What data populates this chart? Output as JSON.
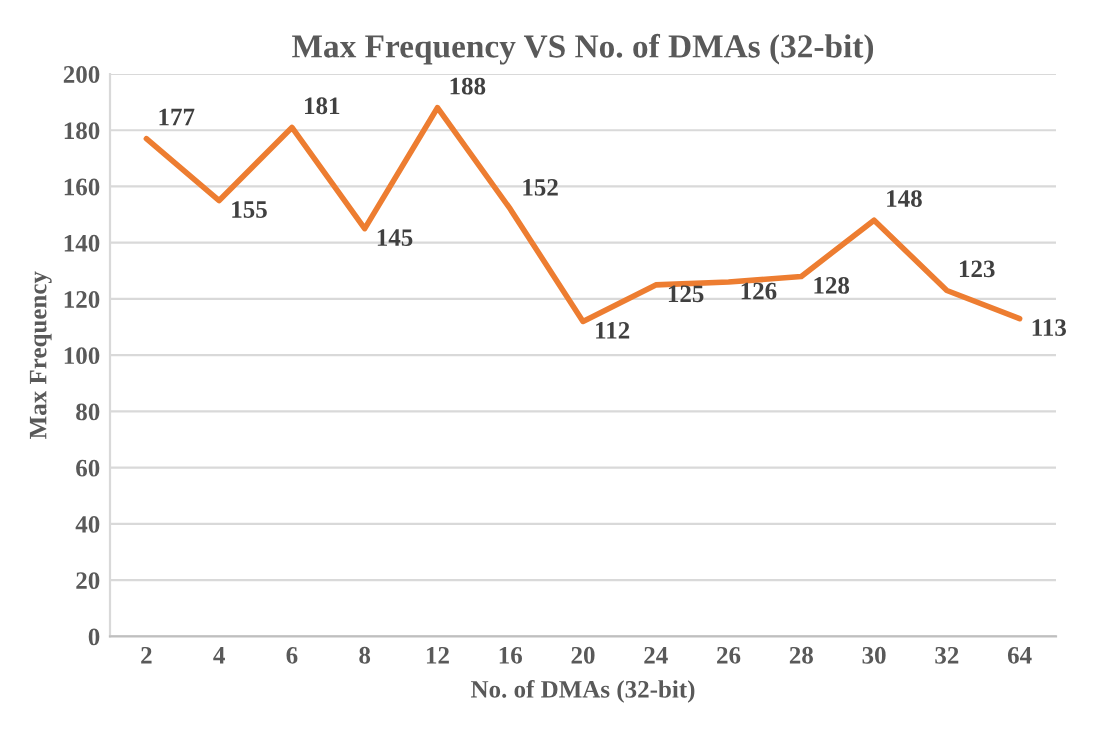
{
  "chart_data": {
    "type": "line",
    "title": "Max Frequency VS No. of DMAs (32-bit)",
    "xlabel": "No. of DMAs (32-bit)",
    "ylabel": "Max Frequency",
    "categories": [
      "2",
      "4",
      "6",
      "8",
      "12",
      "16",
      "20",
      "24",
      "26",
      "28",
      "30",
      "32",
      "64"
    ],
    "series": [
      {
        "color": "#ed7d31",
        "values": [
          177,
          155,
          181,
          145,
          188,
          152,
          112,
          125,
          126,
          128,
          148,
          123,
          113
        ]
      }
    ],
    "ylim": [
      0,
      200
    ],
    "yticks": [
      0,
      20,
      40,
      60,
      80,
      100,
      120,
      140,
      160,
      180,
      200
    ],
    "grid": "y",
    "data_labels": true,
    "marker": "none",
    "line_style": "solid",
    "legend": false
  }
}
